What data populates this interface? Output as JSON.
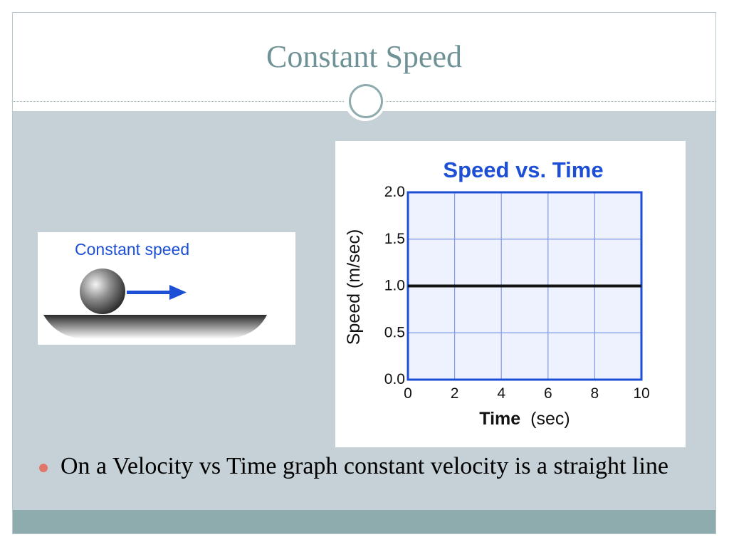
{
  "slide": {
    "title": "Constant Speed",
    "colors": {
      "title": "#6f9297",
      "content_background": "#c5d1d7",
      "footer": "#8eabad",
      "bullet": "#e0766a"
    }
  },
  "illustration": {
    "label": "Constant speed",
    "label_color": "#1c4fd6",
    "arrow_color": "#1c4fd6",
    "icons": [
      "ball-icon",
      "arrow-right-icon",
      "surface-icon"
    ]
  },
  "chart_data": {
    "type": "line",
    "title": "Speed vs. Time",
    "xlabel": "Time (sec)",
    "xlabel_bold": "Time",
    "xlabel_unit": "(sec)",
    "ylabel": "Speed (m/sec)",
    "xlim": [
      0,
      10
    ],
    "ylim": [
      0,
      2
    ],
    "xticks": [
      "0",
      "2",
      "4",
      "6",
      "8",
      "10"
    ],
    "yticks": [
      "0.0",
      "0.5",
      "1.0",
      "1.5",
      "2.0"
    ],
    "grid": true,
    "colors": {
      "title": "#1c4fd6",
      "frame": "#1c4fd6",
      "grid": "#7f97e6",
      "plot_background": "#eef2ff",
      "line": "#111111"
    },
    "series": [
      {
        "x": [
          0,
          10
        ],
        "y": [
          1.0,
          1.0
        ]
      }
    ]
  },
  "bullets": [
    "On a Velocity vs Time graph constant velocity is a straight line"
  ]
}
